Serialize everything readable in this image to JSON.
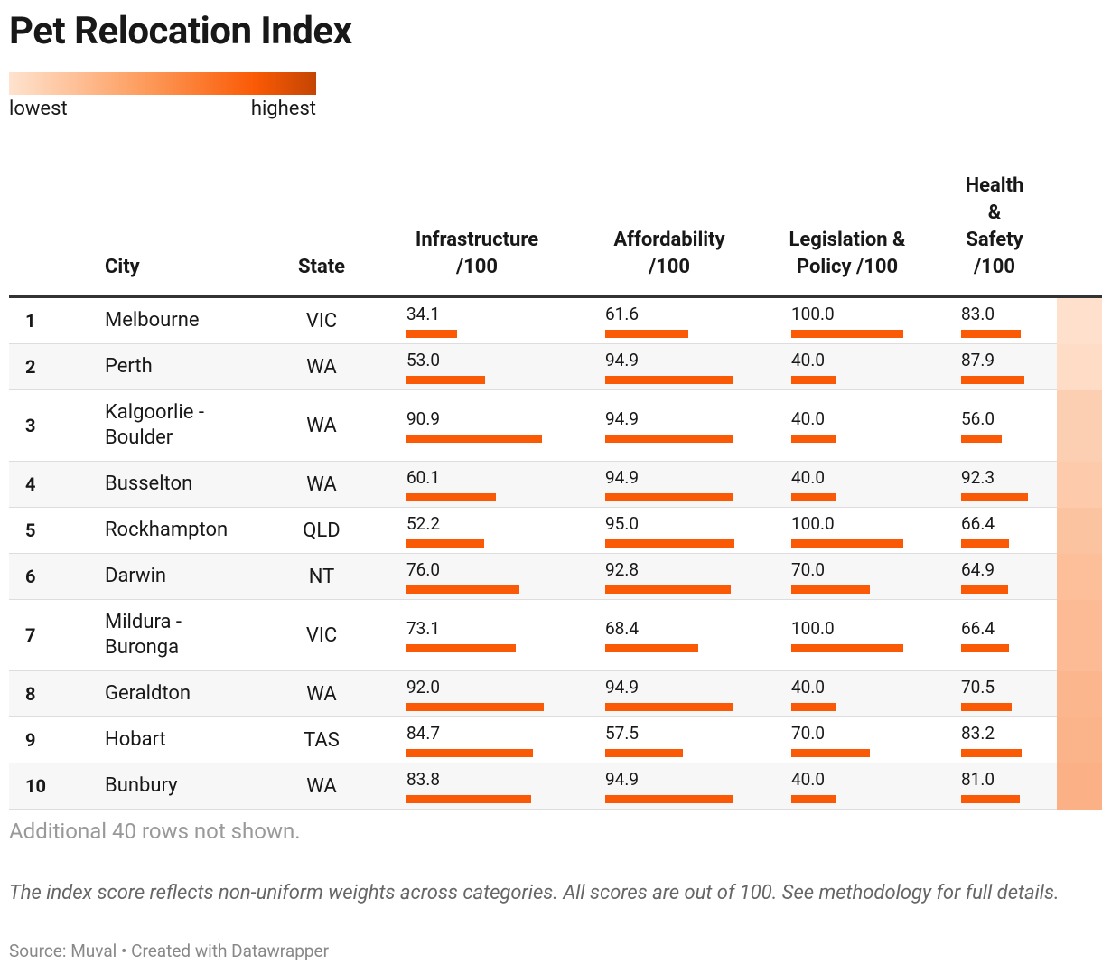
{
  "title": "Pet Relocation Index",
  "legend": {
    "low": "lowest",
    "high": "highest"
  },
  "table": {
    "columns": [
      "City",
      "State",
      "Infrastructure /100",
      "Affordability /100",
      "Legislation & Policy /100",
      "Health & Safety /100"
    ],
    "rows": [
      [
        "1",
        "Melbourne",
        "VIC",
        "34.1",
        "61.6",
        "100.0",
        "83.0"
      ],
      [
        "2",
        "Perth",
        "WA",
        "53.0",
        "94.9",
        "40.0",
        "87.9"
      ],
      [
        "3",
        "Kalgoorlie - Boulder",
        "WA",
        "90.9",
        "94.9",
        "40.0",
        "56.0"
      ],
      [
        "4",
        "Busselton",
        "WA",
        "60.1",
        "94.9",
        "40.0",
        "92.3"
      ],
      [
        "5",
        "Rockhampton",
        "QLD",
        "52.2",
        "95.0",
        "100.0",
        "66.4"
      ],
      [
        "6",
        "Darwin",
        "NT",
        "76.0",
        "92.8",
        "70.0",
        "64.9"
      ],
      [
        "7",
        "Mildura - Buronga",
        "VIC",
        "73.1",
        "68.4",
        "100.0",
        "66.4"
      ],
      [
        "8",
        "Geraldton",
        "WA",
        "92.0",
        "94.9",
        "40.0",
        "70.5"
      ],
      [
        "9",
        "Hobart",
        "TAS",
        "84.7",
        "57.5",
        "70.0",
        "83.2"
      ],
      [
        "10",
        "Bunbury",
        "WA",
        "83.8",
        "94.9",
        "40.0",
        "81.0"
      ]
    ]
  },
  "notes": {
    "more_rows": "Additional 40 rows not shown.",
    "description": "The index score reflects non-uniform weights across categories. All scores are out of 100. See methodology for full details.",
    "source": "Source: Muval • Created with Datawrapper"
  }
}
